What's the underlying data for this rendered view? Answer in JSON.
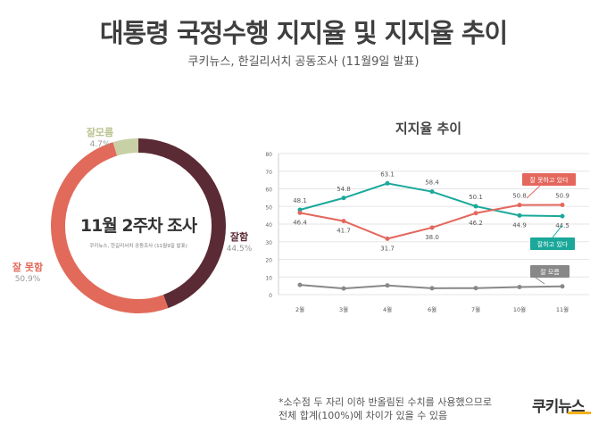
{
  "title": "대통령 국정수행 지지율 및 지지율 추이",
  "subtitle": "쿠키뉴스, 한길리서치 공동조사 (11월9일 발표)",
  "brand": "쿠키뉴스",
  "footnote": [
    "*소수점 두 자리 이하 반올림된 수치를 사용했으므로",
    "전체 합계(100%)에 차이가 있을 수 있음"
  ],
  "chart_data": [
    {
      "type": "pie",
      "title": "11월 2주차 조사",
      "subtitle": "쿠키뉴스, 한길리서치 공동조사 (11월9일 발표)",
      "slices": [
        {
          "label": "잘함",
          "value": 44.5,
          "value_label": "44.5%",
          "color": "#5b2b35"
        },
        {
          "label": "잘 못함",
          "value": 50.9,
          "value_label": "50.9%",
          "color": "#e26a5a"
        },
        {
          "label": "잘모름",
          "value": 4.7,
          "value_label": "4.7%",
          "color": "#c8d0a6"
        }
      ]
    },
    {
      "type": "line",
      "title": "지지율 추이",
      "categories": [
        "2월",
        "3월",
        "4월",
        "6월",
        "7월",
        "10월",
        "11월"
      ],
      "ylim": [
        0,
        80
      ],
      "yticks": [
        0,
        10,
        20,
        30,
        40,
        50,
        60,
        70,
        80
      ],
      "grid": true,
      "series": [
        {
          "name": "잘하고 있다",
          "color": "#1ba89b",
          "values": [
            48.1,
            54.8,
            63.1,
            58.4,
            50.1,
            44.9,
            44.5
          ],
          "labels": [
            "48.1",
            "54.8",
            "63.1",
            "58.4",
            "50.1",
            "44.9",
            "44.5"
          ]
        },
        {
          "name": "잘 못하고 있다",
          "color": "#e4675d",
          "values": [
            46.4,
            41.7,
            31.7,
            38.0,
            46.2,
            50.8,
            50.9
          ],
          "labels": [
            "46.4",
            "41.7",
            "31.7",
            "38.0",
            "46.2",
            "50.8",
            "50.9"
          ]
        },
        {
          "name": "잘 모름",
          "color": "#888888",
          "values": [
            5.5,
            3.5,
            5.2,
            3.6,
            3.7,
            4.3,
            4.7
          ],
          "labels": [
            "",
            "",
            "",
            "",
            "",
            "",
            ""
          ]
        }
      ]
    }
  ]
}
